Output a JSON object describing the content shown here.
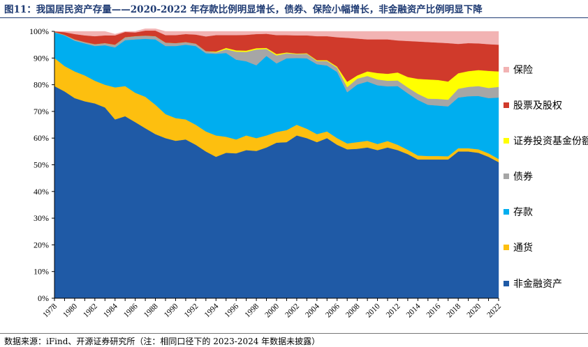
{
  "header": {
    "title": "图11：我国居民资产存量——2020-2022 年存款比例明显增长，债券、保险小幅增长，非金融资产比例明显下降"
  },
  "footer": {
    "source": "数据来源：iFind、开源证券研究所（注：相同口径下的 2023-2024 年数据未披露）"
  },
  "chart_data": {
    "type": "area",
    "stacked": true,
    "percent": true,
    "title": "",
    "xlabel": "",
    "ylabel": "",
    "ylim": [
      0,
      100
    ],
    "yticks": [
      "0%",
      "10%",
      "20%",
      "30%",
      "40%",
      "50%",
      "60%",
      "70%",
      "80%",
      "90%",
      "100%"
    ],
    "x": [
      1978,
      1979,
      1980,
      1981,
      1982,
      1983,
      1984,
      1985,
      1986,
      1987,
      1988,
      1989,
      1990,
      1991,
      1992,
      1993,
      1994,
      1995,
      1996,
      1997,
      1998,
      1999,
      2000,
      2001,
      2002,
      2003,
      2004,
      2005,
      2006,
      2007,
      2008,
      2009,
      2010,
      2011,
      2012,
      2013,
      2014,
      2015,
      2016,
      2017,
      2018,
      2019,
      2020,
      2021,
      2022
    ],
    "legend_position": "right",
    "series": [
      {
        "name": "非金融资产",
        "color": "#1f5aa6",
        "values": [
          79.5,
          77.5,
          75,
          73.8,
          73,
          71.5,
          67,
          68.2,
          66,
          63.7,
          61.5,
          60,
          59,
          59.5,
          57.5,
          55,
          53,
          54.5,
          54.3,
          55.5,
          55.2,
          56.5,
          58.3,
          58.5,
          61,
          60,
          58.5,
          60,
          57.5,
          55.8,
          56,
          56.5,
          55.5,
          56.5,
          55.5,
          54,
          52,
          52,
          52,
          52,
          55,
          55,
          54.5,
          53,
          51
        ]
      },
      {
        "name": "通货",
        "color": "#fdbf0f",
        "values": [
          10.5,
          9.5,
          10,
          9.7,
          8.5,
          8.5,
          12,
          11.3,
          11,
          11.8,
          11,
          9,
          8.5,
          7.5,
          7.5,
          7.5,
          8,
          6,
          5.2,
          5.5,
          4.8,
          4.5,
          4,
          4.5,
          4,
          3.5,
          3,
          2.5,
          2.5,
          2.2,
          2.5,
          2.5,
          2.3,
          2.4,
          2,
          1.6,
          1.5,
          1.3,
          1.3,
          1.2,
          1.2,
          1.2,
          1.3,
          1.3,
          1.2
        ]
      },
      {
        "name": "存款",
        "color": "#00aeef",
        "values": [
          9.6,
          11.5,
          11.5,
          12,
          13,
          14.8,
          15,
          17.2,
          20,
          21.7,
          24.5,
          25.5,
          27,
          28,
          29.5,
          29.3,
          30.6,
          31.4,
          29.9,
          27.8,
          27.3,
          29.8,
          25.7,
          26.9,
          25,
          26.4,
          26.2,
          24.7,
          24.8,
          19.2,
          21.6,
          22.2,
          22,
          20.5,
          22,
          21.2,
          20.8,
          19.2,
          18.9,
          18.7,
          19,
          19.5,
          20,
          20.7,
          23
        ]
      },
      {
        "name": "债券",
        "color": "#a6a6a6",
        "values": [
          0.2,
          0.2,
          0.5,
          0.5,
          0.7,
          0.8,
          1,
          1.1,
          1.2,
          1.2,
          1.2,
          1.3,
          1.1,
          1,
          0.9,
          0.8,
          0.5,
          1.4,
          3,
          3.5,
          5.9,
          2.6,
          3,
          1.9,
          1.5,
          1.7,
          1.2,
          1.7,
          1.6,
          1.9,
          2.2,
          2.1,
          2.2,
          2.1,
          2.1,
          2.2,
          2.3,
          2.3,
          2.5,
          2.5,
          3.3,
          3.5,
          3.7,
          3.8,
          4
        ]
      },
      {
        "name": "证券投资基金份额",
        "color": "#ffff00",
        "values": [
          0,
          0,
          0,
          0,
          0,
          0,
          0,
          0,
          0,
          0,
          0,
          0,
          0,
          0,
          0,
          0,
          0.3,
          0.5,
          0.5,
          0.5,
          0.5,
          0.4,
          0.5,
          0.3,
          0.2,
          0.2,
          0.3,
          0.3,
          0.4,
          2,
          1.2,
          1.7,
          2.4,
          2.6,
          3,
          3.9,
          5.6,
          7.2,
          7.1,
          6.8,
          5.8,
          5.9,
          6,
          6.4,
          5.8
        ]
      },
      {
        "name": "股票及股权",
        "color": "#d03a2b",
        "values": [
          0.2,
          1,
          2,
          2.5,
          3,
          2.9,
          3.5,
          2,
          1.4,
          1.9,
          2.1,
          2.8,
          3,
          3,
          3.4,
          5.5,
          6.2,
          4.8,
          5.7,
          5.9,
          5.3,
          5.3,
          7.1,
          6.5,
          6.8,
          6.7,
          9,
          9,
          11,
          16.5,
          13.8,
          12,
          12.6,
          12.9,
          12,
          13.5,
          14,
          14,
          14,
          14.4,
          11,
          10.5,
          10,
          10,
          10
        ]
      },
      {
        "name": "保险",
        "color": "#f2b3b3",
        "values": [
          0,
          0.3,
          1,
          1.5,
          1.8,
          1.5,
          0.5,
          0.2,
          0.4,
          0.7,
          0.7,
          1.4,
          1.4,
          1,
          1.2,
          1.9,
          1.4,
          1.4,
          1.4,
          1.3,
          1,
          0.9,
          1.4,
          1.4,
          1.5,
          1.5,
          1.8,
          1.8,
          2.2,
          2.4,
          2.7,
          3,
          3,
          3,
          3.4,
          3.6,
          3.8,
          4,
          4.2,
          4.4,
          4.7,
          4.4,
          4.5,
          4.8,
          5
        ]
      }
    ],
    "legend_order": [
      "保险",
      "股票及股权",
      "证券投资基金份额",
      "债券",
      "存款",
      "通货",
      "非金融资产"
    ]
  }
}
